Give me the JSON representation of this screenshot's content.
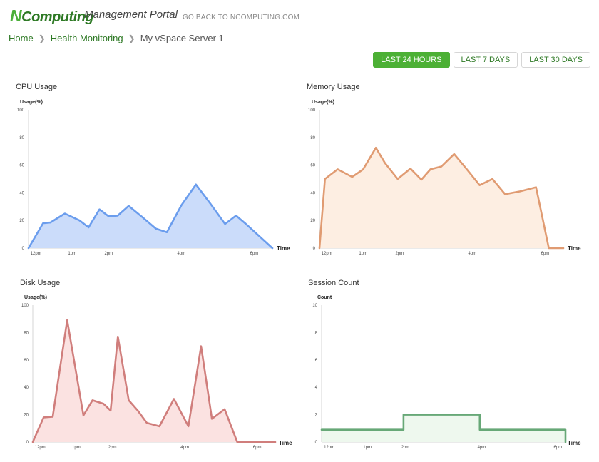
{
  "header": {
    "logo_n": "N",
    "logo_rest": "Computing",
    "portal_title": "Management Portal",
    "back_link": "GO BACK TO NCOMPUTING.COM"
  },
  "breadcrumb": {
    "home": "Home",
    "health": "Health Monitoring",
    "current": "My vSpace Server 1"
  },
  "time_range": {
    "options": [
      "LAST 24 HOURS",
      "LAST 7 DAYS",
      "LAST 30 DAYS"
    ],
    "selected": "LAST 24 HOURS"
  },
  "chart_data": [
    {
      "id": "cpu",
      "type": "area",
      "title": "CPU Usage",
      "ylabel": "Usage(%)",
      "xlabel": "Time",
      "ylim": [
        0,
        100
      ],
      "yticks": [
        0,
        20,
        40,
        60,
        80,
        100
      ],
      "xlim": [
        11.8,
        18.5
      ],
      "xticks": [
        {
          "v": 12,
          "label": "12pm"
        },
        {
          "v": 13,
          "label": "1pm"
        },
        {
          "v": 14,
          "label": "2pm"
        },
        {
          "v": 16,
          "label": "4pm"
        },
        {
          "v": 18,
          "label": "6pm"
        }
      ],
      "color": "#6b9ded",
      "fill": "#cbdcfa",
      "x": [
        11.8,
        12.2,
        12.4,
        12.8,
        13.2,
        13.45,
        13.75,
        14.0,
        14.25,
        14.55,
        14.9,
        15.3,
        15.6,
        16.0,
        16.4,
        16.8,
        17.2,
        17.5,
        17.75,
        18.5
      ],
      "y": [
        0,
        18,
        18.5,
        25,
        20,
        15,
        28,
        23,
        23.5,
        30.5,
        23,
        14,
        11.5,
        31,
        46,
        32,
        17.5,
        23.5,
        18,
        0
      ]
    },
    {
      "id": "memory",
      "type": "area",
      "title": "Memory Usage",
      "ylabel": "Usage(%)",
      "xlabel": "Time",
      "ylim": [
        0,
        100
      ],
      "yticks": [
        0,
        20,
        40,
        60,
        80,
        100
      ],
      "xlim": [
        11.8,
        18.5
      ],
      "xticks": [
        {
          "v": 12,
          "label": "12pm"
        },
        {
          "v": 13,
          "label": "1pm"
        },
        {
          "v": 14,
          "label": "2pm"
        },
        {
          "v": 16,
          "label": "4pm"
        },
        {
          "v": 18,
          "label": "6pm"
        }
      ],
      "color": "#e09b72",
      "fill": "#fdeee2",
      "x": [
        11.8,
        11.95,
        12.3,
        12.7,
        13.0,
        13.35,
        13.6,
        13.95,
        14.3,
        14.6,
        14.85,
        15.15,
        15.5,
        15.85,
        16.2,
        16.55,
        16.9,
        17.3,
        17.75,
        18.1,
        18.5
      ],
      "y": [
        0,
        50,
        57,
        51.5,
        57,
        72.5,
        61.5,
        50,
        57.5,
        49.5,
        57,
        59,
        68,
        57,
        45.5,
        50,
        39,
        41,
        44,
        0,
        0
      ]
    },
    {
      "id": "disk",
      "type": "area",
      "title": "Disk Usage",
      "ylabel": "Usage(%)",
      "xlabel": "Time",
      "ylim": [
        0,
        100
      ],
      "yticks": [
        0,
        20,
        40,
        60,
        80,
        100
      ],
      "xlim": [
        11.8,
        18.5
      ],
      "xticks": [
        {
          "v": 12,
          "label": "12pm"
        },
        {
          "v": 13,
          "label": "1pm"
        },
        {
          "v": 14,
          "label": "2pm"
        },
        {
          "v": 16,
          "label": "4pm"
        },
        {
          "v": 18,
          "label": "6pm"
        }
      ],
      "color": "#d07e7c",
      "fill": "#fbe2e1",
      "x": [
        11.8,
        12.1,
        12.35,
        12.75,
        13.2,
        13.45,
        13.75,
        13.95,
        14.15,
        14.45,
        14.7,
        14.95,
        15.3,
        15.7,
        16.1,
        16.45,
        16.75,
        17.1,
        17.45,
        17.9,
        18.5
      ],
      "y": [
        0,
        18,
        18.5,
        89,
        19.5,
        30.5,
        28,
        23,
        77,
        30.5,
        23,
        14,
        11.5,
        31.5,
        11.5,
        70,
        17,
        24,
        0,
        0,
        0
      ]
    },
    {
      "id": "sessions",
      "type": "step",
      "title": "Session Count",
      "ylabel": "Count",
      "xlabel": "Time",
      "ylim": [
        0,
        10
      ],
      "yticks": [
        0,
        2,
        4,
        6,
        8,
        10
      ],
      "xlim": [
        11.8,
        18.2
      ],
      "xticks": [
        {
          "v": 12,
          "label": "12pm"
        },
        {
          "v": 13,
          "label": "1pm"
        },
        {
          "v": 14,
          "label": "2pm"
        },
        {
          "v": 16,
          "label": "4pm"
        },
        {
          "v": 18,
          "label": "6pm"
        }
      ],
      "color": "#67a877",
      "fill": "#eef8ee",
      "x": [
        11.8,
        13.95,
        13.95,
        15.95,
        15.95,
        18.2,
        18.2
      ],
      "y": [
        0.9,
        0.9,
        2,
        2,
        0.9,
        0.9,
        0
      ]
    }
  ]
}
